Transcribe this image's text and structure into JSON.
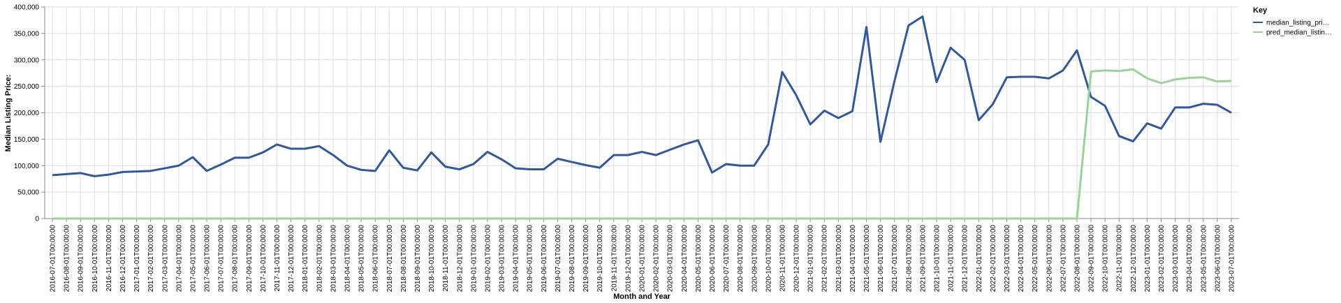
{
  "chart_data": {
    "type": "line",
    "xlabel": "Month and Year",
    "ylabel": "Median Listing Price:",
    "ylim": [
      0,
      400000
    ],
    "yticks": [
      "0",
      "50,000",
      "100,000",
      "150,000",
      "200,000",
      "250,000",
      "300,000",
      "350,000",
      "400,000"
    ],
    "grid": true,
    "legend_position": "top-right",
    "legend_title": "Key",
    "x": [
      "2016-07-01T00:00:00",
      "2016-08-01T00:00:00",
      "2016-09-01T00:00:00",
      "2016-10-01T00:00:00",
      "2016-11-01T00:00:00",
      "2016-12-01T00:00:00",
      "2017-01-01T00:00:00",
      "2017-02-01T00:00:00",
      "2017-03-01T00:00:00",
      "2017-04-01T00:00:00",
      "2017-05-01T00:00:00",
      "2017-06-01T00:00:00",
      "2017-07-01T00:00:00",
      "2017-08-01T00:00:00",
      "2017-09-01T00:00:00",
      "2017-10-01T00:00:00",
      "2017-11-01T00:00:00",
      "2017-12-01T00:00:00",
      "2018-01-01T00:00:00",
      "2018-02-01T00:00:00",
      "2018-03-01T00:00:00",
      "2018-04-01T00:00:00",
      "2018-05-01T00:00:00",
      "2018-06-01T00:00:00",
      "2018-07-01T00:00:00",
      "2018-08-01T00:00:00",
      "2018-09-01T00:00:00",
      "2018-10-01T00:00:00",
      "2018-11-01T00:00:00",
      "2018-12-01T00:00:00",
      "2019-01-01T00:00:00",
      "2019-02-01T00:00:00",
      "2019-03-01T00:00:00",
      "2019-04-01T00:00:00",
      "2019-05-01T00:00:00",
      "2019-06-01T00:00:00",
      "2019-07-01T00:00:00",
      "2019-08-01T00:00:00",
      "2019-09-01T00:00:00",
      "2019-10-01T00:00:00",
      "2019-11-01T00:00:00",
      "2019-12-01T00:00:00",
      "2020-01-01T00:00:00",
      "2020-02-01T00:00:00",
      "2020-03-01T00:00:00",
      "2020-04-01T00:00:00",
      "2020-05-01T00:00:00",
      "2020-06-01T00:00:00",
      "2020-07-01T00:00:00",
      "2020-08-01T00:00:00",
      "2020-09-01T00:00:00",
      "2020-10-01T00:00:00",
      "2020-11-01T00:00:00",
      "2020-12-01T00:00:00",
      "2021-01-01T00:00:00",
      "2021-02-01T00:00:00",
      "2021-03-01T00:00:00",
      "2021-04-01T00:00:00",
      "2021-05-01T00:00:00",
      "2021-06-01T00:00:00",
      "2021-07-01T00:00:00",
      "2021-08-01T00:00:00",
      "2021-09-01T00:00:00",
      "2021-10-01T00:00:00",
      "2021-11-01T00:00:00",
      "2021-12-01T00:00:00",
      "2022-01-01T00:00:00",
      "2022-02-01T00:00:00",
      "2022-03-01T00:00:00",
      "2022-04-01T00:00:00",
      "2022-05-01T00:00:00",
      "2022-06-01T00:00:00",
      "2022-07-01T00:00:00",
      "2022-08-01T00:00:00",
      "2022-09-01T00:00:00",
      "2022-10-01T00:00:00",
      "2022-11-01T00:00:00",
      "2022-12-01T00:00:00",
      "2023-01-01T00:00:00",
      "2023-02-01T00:00:00",
      "2023-03-01T00:00:00",
      "2023-04-01T00:00:00",
      "2023-05-01T00:00:00",
      "2023-06-01T00:00:00",
      "2023-07-01T00:00:00"
    ],
    "series": [
      {
        "name": "median_listing_pri…",
        "color": "#2f58a0",
        "values": [
          82000,
          84000,
          86000,
          80000,
          83000,
          88000,
          89000,
          90000,
          95000,
          100000,
          116000,
          90000,
          102000,
          115000,
          115000,
          125000,
          140000,
          132000,
          132000,
          137000,
          120000,
          100000,
          92000,
          90000,
          129000,
          96000,
          91000,
          125000,
          98000,
          93000,
          103000,
          126000,
          112000,
          95000,
          93000,
          93000,
          113000,
          107000,
          101000,
          96000,
          120000,
          120000,
          126000,
          120000,
          130000,
          140000,
          148000,
          87000,
          103000,
          100000,
          100000,
          140000,
          277000,
          233000,
          178000,
          204000,
          190000,
          203000,
          362000,
          145000,
          260000,
          365000,
          382000,
          258000,
          323000,
          300000,
          186000,
          216000,
          267000,
          268000,
          268000,
          265000,
          280000,
          318000,
          230000,
          213000,
          156000,
          146000,
          180000,
          170000,
          210000,
          210000,
          217000,
          215000,
          200000
        ]
      },
      {
        "name": "pred_median_listin…",
        "color": "#98d594",
        "values": [
          0,
          0,
          0,
          0,
          0,
          0,
          0,
          0,
          0,
          0,
          0,
          0,
          0,
          0,
          0,
          0,
          0,
          0,
          0,
          0,
          0,
          0,
          0,
          0,
          0,
          0,
          0,
          0,
          0,
          0,
          0,
          0,
          0,
          0,
          0,
          0,
          0,
          0,
          0,
          0,
          0,
          0,
          0,
          0,
          0,
          0,
          0,
          0,
          0,
          0,
          0,
          0,
          0,
          0,
          0,
          0,
          0,
          0,
          0,
          0,
          0,
          0,
          0,
          0,
          0,
          0,
          0,
          0,
          0,
          0,
          0,
          0,
          0,
          0,
          278000,
          280000,
          279000,
          282000,
          265000,
          256000,
          263000,
          266000,
          267000,
          259000,
          260000
        ]
      }
    ]
  }
}
